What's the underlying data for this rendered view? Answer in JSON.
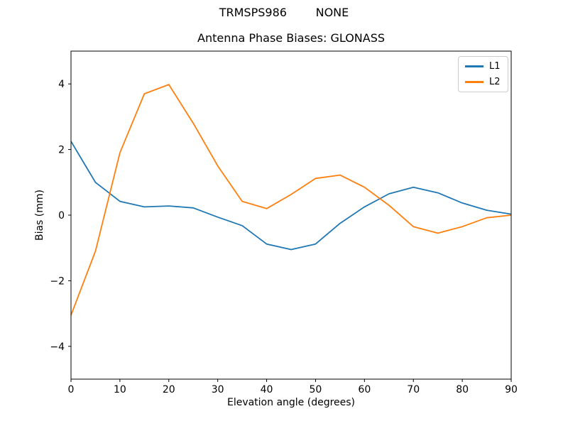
{
  "figure": {
    "suptitle": "TRMSPS986        NONE",
    "background": "#ffffff"
  },
  "chart_data": {
    "type": "line",
    "title": "Antenna Phase Biases: GLONASS",
    "xlabel": "Elevation angle (degrees)",
    "ylabel": "Bias (mm)",
    "x": [
      0,
      5,
      10,
      15,
      20,
      25,
      30,
      35,
      40,
      45,
      50,
      55,
      60,
      65,
      70,
      75,
      80,
      85,
      90
    ],
    "series": [
      {
        "name": "L1",
        "color": "#1f77b4",
        "values": [
          2.25,
          1.0,
          0.42,
          0.25,
          0.28,
          0.22,
          -0.06,
          -0.32,
          -0.88,
          -1.05,
          -0.88,
          -0.25,
          0.25,
          0.65,
          0.85,
          0.68,
          0.37,
          0.15,
          0.03
        ]
      },
      {
        "name": "L2",
        "color": "#ff7f0e",
        "values": [
          -3.05,
          -1.1,
          1.9,
          3.7,
          3.98,
          2.8,
          1.5,
          0.42,
          0.2,
          0.63,
          1.12,
          1.22,
          0.85,
          0.3,
          -0.35,
          -0.55,
          -0.35,
          -0.08,
          0.0
        ]
      }
    ],
    "xlim": [
      0,
      90
    ],
    "ylim": [
      -5,
      5
    ],
    "xticks": {
      "values": [
        0,
        10,
        20,
        30,
        40,
        50,
        60,
        70,
        80,
        90
      ],
      "labels": [
        "0",
        "10",
        "20",
        "30",
        "40",
        "50",
        "60",
        "70",
        "80",
        "90"
      ]
    },
    "yticks": {
      "values": [
        -4,
        -2,
        0,
        2,
        4
      ],
      "labels": [
        "−4",
        "−2",
        "0",
        "2",
        "4"
      ]
    },
    "grid": false,
    "legend": {
      "position": "upper right"
    },
    "line_width": 1.8,
    "axis_color": "#000000"
  }
}
